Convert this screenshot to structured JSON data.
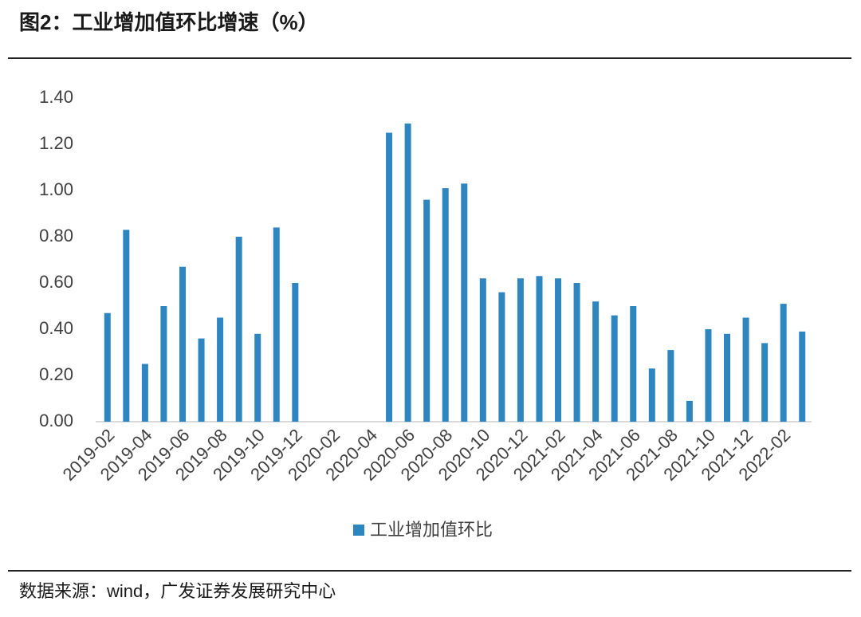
{
  "chart_data": {
    "type": "bar",
    "title": "图2：工业增加值环比增速（%）",
    "source": "数据来源：wind，广发证券发展研究中心",
    "categories": [
      "2019-02",
      null,
      "2019-04",
      null,
      "2019-06",
      null,
      "2019-08",
      null,
      "2019-10",
      null,
      "2019-12",
      null,
      "2020-02",
      null,
      "2020-04",
      null,
      "2020-06",
      null,
      "2020-08",
      null,
      "2020-10",
      null,
      "2020-12",
      null,
      "2021-02",
      null,
      "2021-04",
      null,
      "2021-06",
      null,
      "2021-08",
      null,
      "2021-10",
      null,
      "2021-12",
      null,
      "2022-02",
      null
    ],
    "series": [
      {
        "name": "工业增加值环比",
        "color": "#2e86c1",
        "values": [
          0.47,
          0.83,
          0.25,
          0.5,
          0.67,
          0.36,
          0.45,
          0.8,
          0.38,
          0.84,
          0.6,
          null,
          null,
          null,
          null,
          1.25,
          1.29,
          0.96,
          1.01,
          1.03,
          0.62,
          0.56,
          0.62,
          0.63,
          0.62,
          0.6,
          0.52,
          0.46,
          0.5,
          0.23,
          0.31,
          0.09,
          0.4,
          0.38,
          0.45,
          0.34,
          0.51,
          0.39
        ]
      }
    ],
    "ylim": [
      0,
      1.4
    ],
    "yticks": [
      {
        "value": 0,
        "label": "0.00"
      },
      {
        "value": 0.2,
        "label": "0.20"
      },
      {
        "value": 0.4,
        "label": "0.40"
      },
      {
        "value": 0.6,
        "label": "0.60"
      },
      {
        "value": 0.8,
        "label": "0.80"
      },
      {
        "value": 1.0,
        "label": "1.00"
      },
      {
        "value": 1.2,
        "label": "1.20"
      },
      {
        "value": 1.4,
        "label": "1.40"
      }
    ],
    "grid": false,
    "legend": "bottom"
  }
}
